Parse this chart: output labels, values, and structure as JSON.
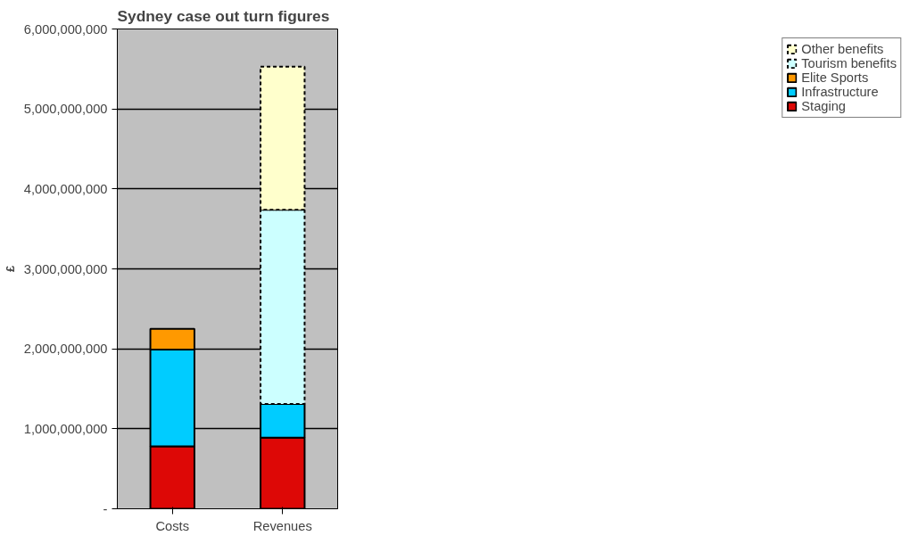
{
  "chart_data": {
    "type": "bar",
    "title": "Sydney case out turn figures",
    "ylabel": "£",
    "stacked": true,
    "categories": [
      "Costs",
      "Revenues"
    ],
    "series": [
      {
        "name": "Staging",
        "color": "#dd0806",
        "values": [
          780000000,
          890000000
        ]
      },
      {
        "name": "Infrastructure",
        "color": "#00ccff",
        "values": [
          1210000000,
          420000000
        ]
      },
      {
        "name": "Elite Sports",
        "color": "#ff9900",
        "values": [
          260000000,
          null
        ]
      },
      {
        "name": "Tourism benefits",
        "color": "#ccffff",
        "values": [
          null,
          2430000000
        ],
        "line_style": "dashed"
      },
      {
        "name": "Other benefits",
        "color": "#ffffcc",
        "values": [
          null,
          1790000000
        ],
        "line_style": "dashed"
      }
    ],
    "ylim": [
      0,
      6000000000
    ],
    "yticks": [
      {
        "value": 0,
        "label": "-"
      },
      {
        "value": 1000000000,
        "label": "1,000,000,000"
      },
      {
        "value": 2000000000,
        "label": "2,000,000,000"
      },
      {
        "value": 3000000000,
        "label": "3,000,000,000"
      },
      {
        "value": 4000000000,
        "label": "4,000,000,000"
      },
      {
        "value": 5000000000,
        "label": "5,000,000,000"
      },
      {
        "value": 6000000000,
        "label": "6,000,000,000"
      }
    ],
    "grid": "y",
    "legend": "right"
  }
}
